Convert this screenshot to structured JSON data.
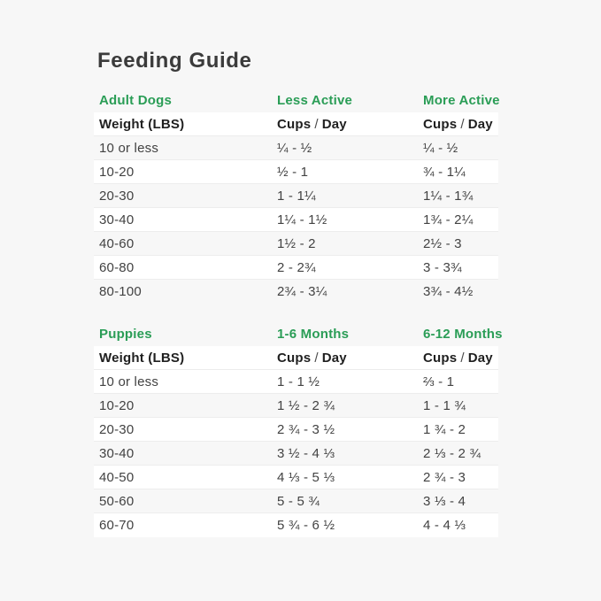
{
  "title": "Feeding Guide",
  "colors": {
    "page_background": "#f7f7f7",
    "row_highlight": "#ffffff",
    "accent_green": "#2a9d56",
    "title_text": "#3b3b3b",
    "header_text": "#1f1f1f",
    "row_text": "#424242"
  },
  "tables": [
    {
      "section": {
        "name": "Adult Dogs",
        "col2": "Less Active",
        "col3": "More Active"
      },
      "header": {
        "col1": "Weight (LBS)",
        "cups": "Cups",
        "slash": "/",
        "day": "Day"
      },
      "rows": [
        {
          "weight": "10 or less",
          "col2": "¼ - ½",
          "col3": "¼ - ½"
        },
        {
          "weight": "10-20",
          "col2": "½ - 1",
          "col3": "¾ - 1¼"
        },
        {
          "weight": "20-30",
          "col2": "1 - 1¼",
          "col3": "1¼ - 1¾"
        },
        {
          "weight": "30-40",
          "col2": "1¼ - 1½",
          "col3": "1¾ - 2¼"
        },
        {
          "weight": "40-60",
          "col2": "1½ - 2",
          "col3": "2½ - 3"
        },
        {
          "weight": "60-80",
          "col2": "2 - 2¾",
          "col3": "3 - 3¾"
        },
        {
          "weight": "80-100",
          "col2": "2¾ - 3¼",
          "col3": "3¾ - 4½"
        }
      ]
    },
    {
      "section": {
        "name": "Puppies",
        "col2": "1-6 Months",
        "col3": "6-12 Months"
      },
      "header": {
        "col1": "Weight (LBS)",
        "cups": "Cups",
        "slash": "/",
        "day": "Day"
      },
      "rows": [
        {
          "weight": "10 or less",
          "col2": "1 - 1 ½",
          "col3": "⅔ - 1"
        },
        {
          "weight": "10-20",
          "col2": "1 ½ - 2 ¾",
          "col3": "1 - 1 ¾"
        },
        {
          "weight": "20-30",
          "col2": "2 ¾ - 3 ½",
          "col3": "1 ¾ - 2"
        },
        {
          "weight": "30-40",
          "col2": "3 ½ - 4 ⅓",
          "col3": "2 ⅓ - 2 ¾"
        },
        {
          "weight": "40-50",
          "col2": "4 ⅓ - 5 ⅓",
          "col3": "2 ¾ - 3"
        },
        {
          "weight": "50-60",
          "col2": "5 - 5 ¾",
          "col3": "3 ⅓ - 4"
        },
        {
          "weight": "60-70",
          "col2": "5 ¾ - 6 ½",
          "col3": "4 - 4 ⅓"
        }
      ]
    }
  ]
}
